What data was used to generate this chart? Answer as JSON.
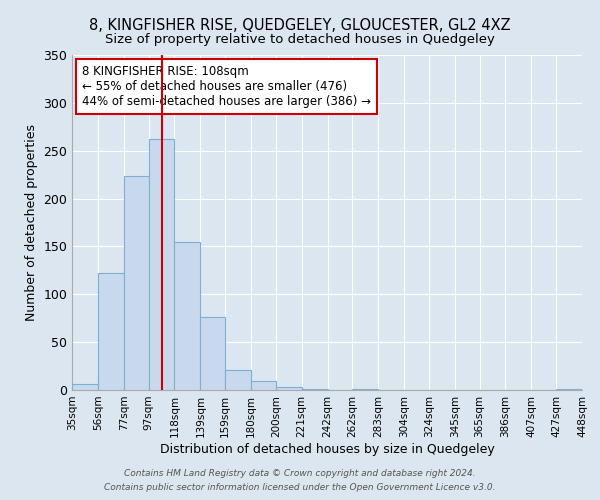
{
  "title": "8, KINGFISHER RISE, QUEDGELEY, GLOUCESTER, GL2 4XZ",
  "subtitle": "Size of property relative to detached houses in Quedgeley",
  "xlabel": "Distribution of detached houses by size in Quedgeley",
  "ylabel": "Number of detached properties",
  "bar_values": [
    6,
    122,
    224,
    262,
    155,
    76,
    21,
    9,
    3,
    1,
    0,
    1,
    0,
    0,
    0,
    0,
    0,
    0,
    0,
    1
  ],
  "bin_edges": [
    35,
    56,
    77,
    97,
    118,
    139,
    159,
    180,
    200,
    221,
    242,
    262,
    283,
    304,
    324,
    345,
    365,
    386,
    407,
    427,
    448
  ],
  "tick_labels": [
    "35sqm",
    "56sqm",
    "77sqm",
    "97sqm",
    "118sqm",
    "139sqm",
    "159sqm",
    "180sqm",
    "200sqm",
    "221sqm",
    "242sqm",
    "262sqm",
    "283sqm",
    "304sqm",
    "324sqm",
    "345sqm",
    "365sqm",
    "386sqm",
    "407sqm",
    "427sqm",
    "448sqm"
  ],
  "bar_color": "#c8d9ed",
  "bar_edge_color": "#7bafd4",
  "property_line_x": 108,
  "property_line_color": "#cc0000",
  "annotation_box_color": "#cc0000",
  "annotation_text": "8 KINGFISHER RISE: 108sqm\n← 55% of detached houses are smaller (476)\n44% of semi-detached houses are larger (386) →",
  "ylim": [
    0,
    350
  ],
  "yticks": [
    0,
    50,
    100,
    150,
    200,
    250,
    300,
    350
  ],
  "background_color": "#dce6f0",
  "plot_background": "#dce6f0",
  "footer_line1": "Contains HM Land Registry data © Crown copyright and database right 2024.",
  "footer_line2": "Contains public sector information licensed under the Open Government Licence v3.0.",
  "title_fontsize": 10.5,
  "subtitle_fontsize": 9.5,
  "axis_label_fontsize": 9,
  "tick_fontsize": 7.5,
  "annotation_fontsize": 8.5
}
